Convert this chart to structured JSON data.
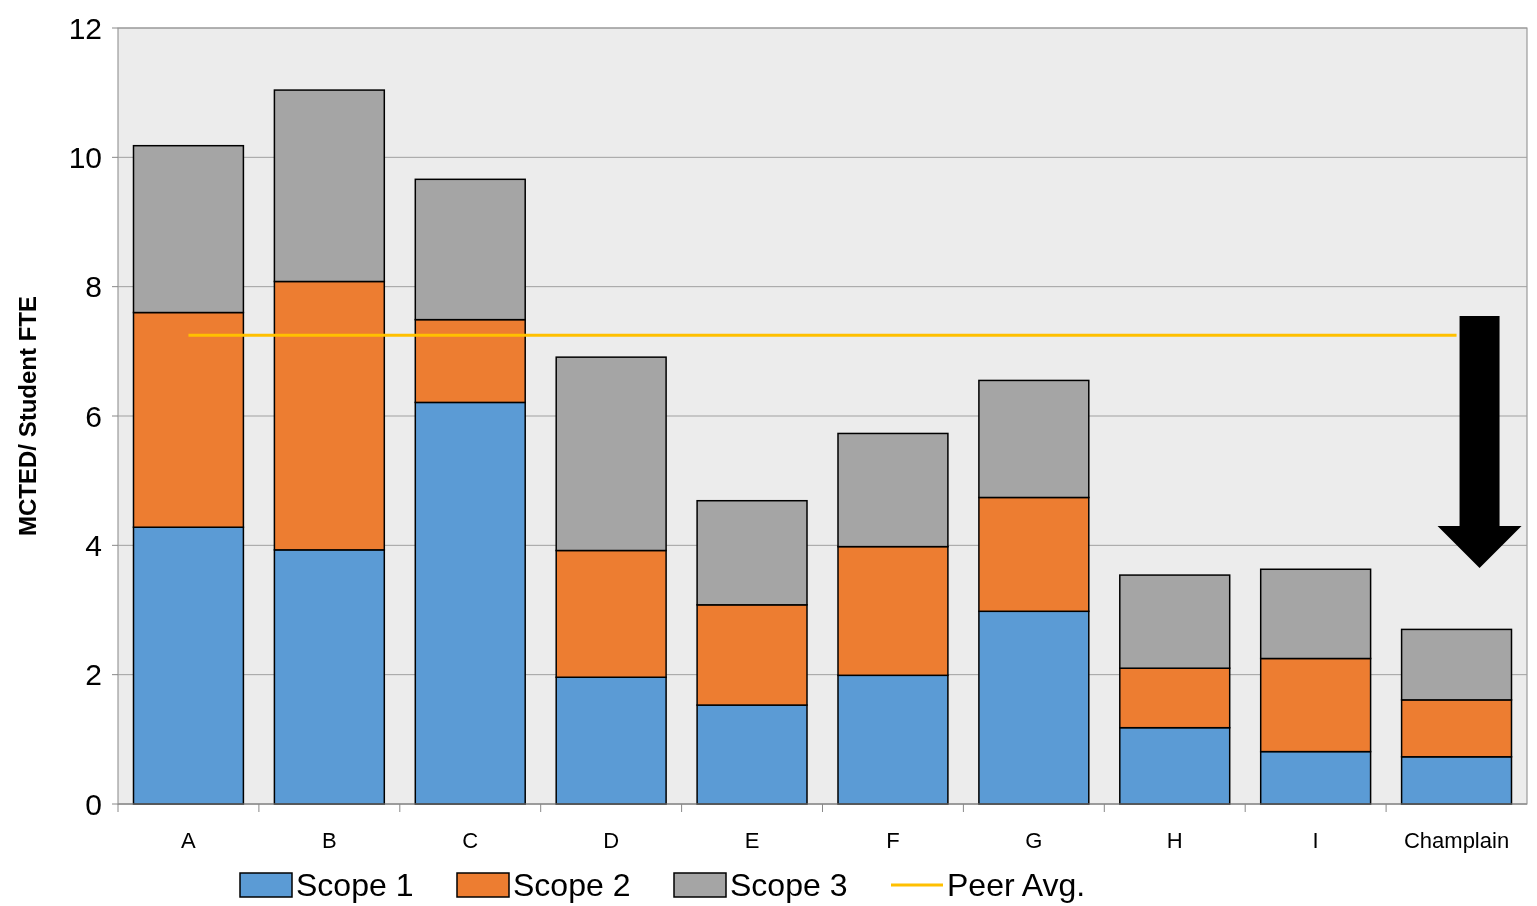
{
  "chart_data": {
    "type": "bar",
    "stacked": true,
    "ylabel": "MCTED/ Student FTE",
    "categories": [
      "A",
      "B",
      "C",
      "D",
      "E",
      "F",
      "G",
      "H",
      "I",
      "Champlain"
    ],
    "series": [
      {
        "name": "Scope 1",
        "color": "#5b9bd5",
        "values": [
          4.28,
          3.93,
          6.21,
          1.96,
          1.53,
          1.99,
          2.98,
          1.18,
          0.81,
          0.73
        ]
      },
      {
        "name": "Scope 2",
        "color": "#ed7d31",
        "values": [
          3.32,
          4.15,
          1.28,
          1.96,
          1.55,
          1.99,
          1.76,
          0.92,
          1.44,
          0.88
        ]
      },
      {
        "name": "Scope 3",
        "color": "#a5a5a5",
        "values": [
          2.58,
          2.96,
          2.17,
          2.99,
          1.61,
          1.75,
          1.81,
          1.44,
          1.38,
          1.09
        ]
      },
      {
        "name": "Peer Avg.",
        "type": "line",
        "color": "#ffc000",
        "values": [
          7.25,
          7.25,
          7.25,
          7.25,
          7.25,
          7.25,
          7.25,
          7.25,
          7.25,
          7.25
        ]
      }
    ],
    "ylim": [
      0,
      12
    ],
    "yticks": [
      0,
      2,
      4,
      6,
      8,
      10,
      12
    ],
    "grid": "y",
    "legend": "bottom"
  }
}
